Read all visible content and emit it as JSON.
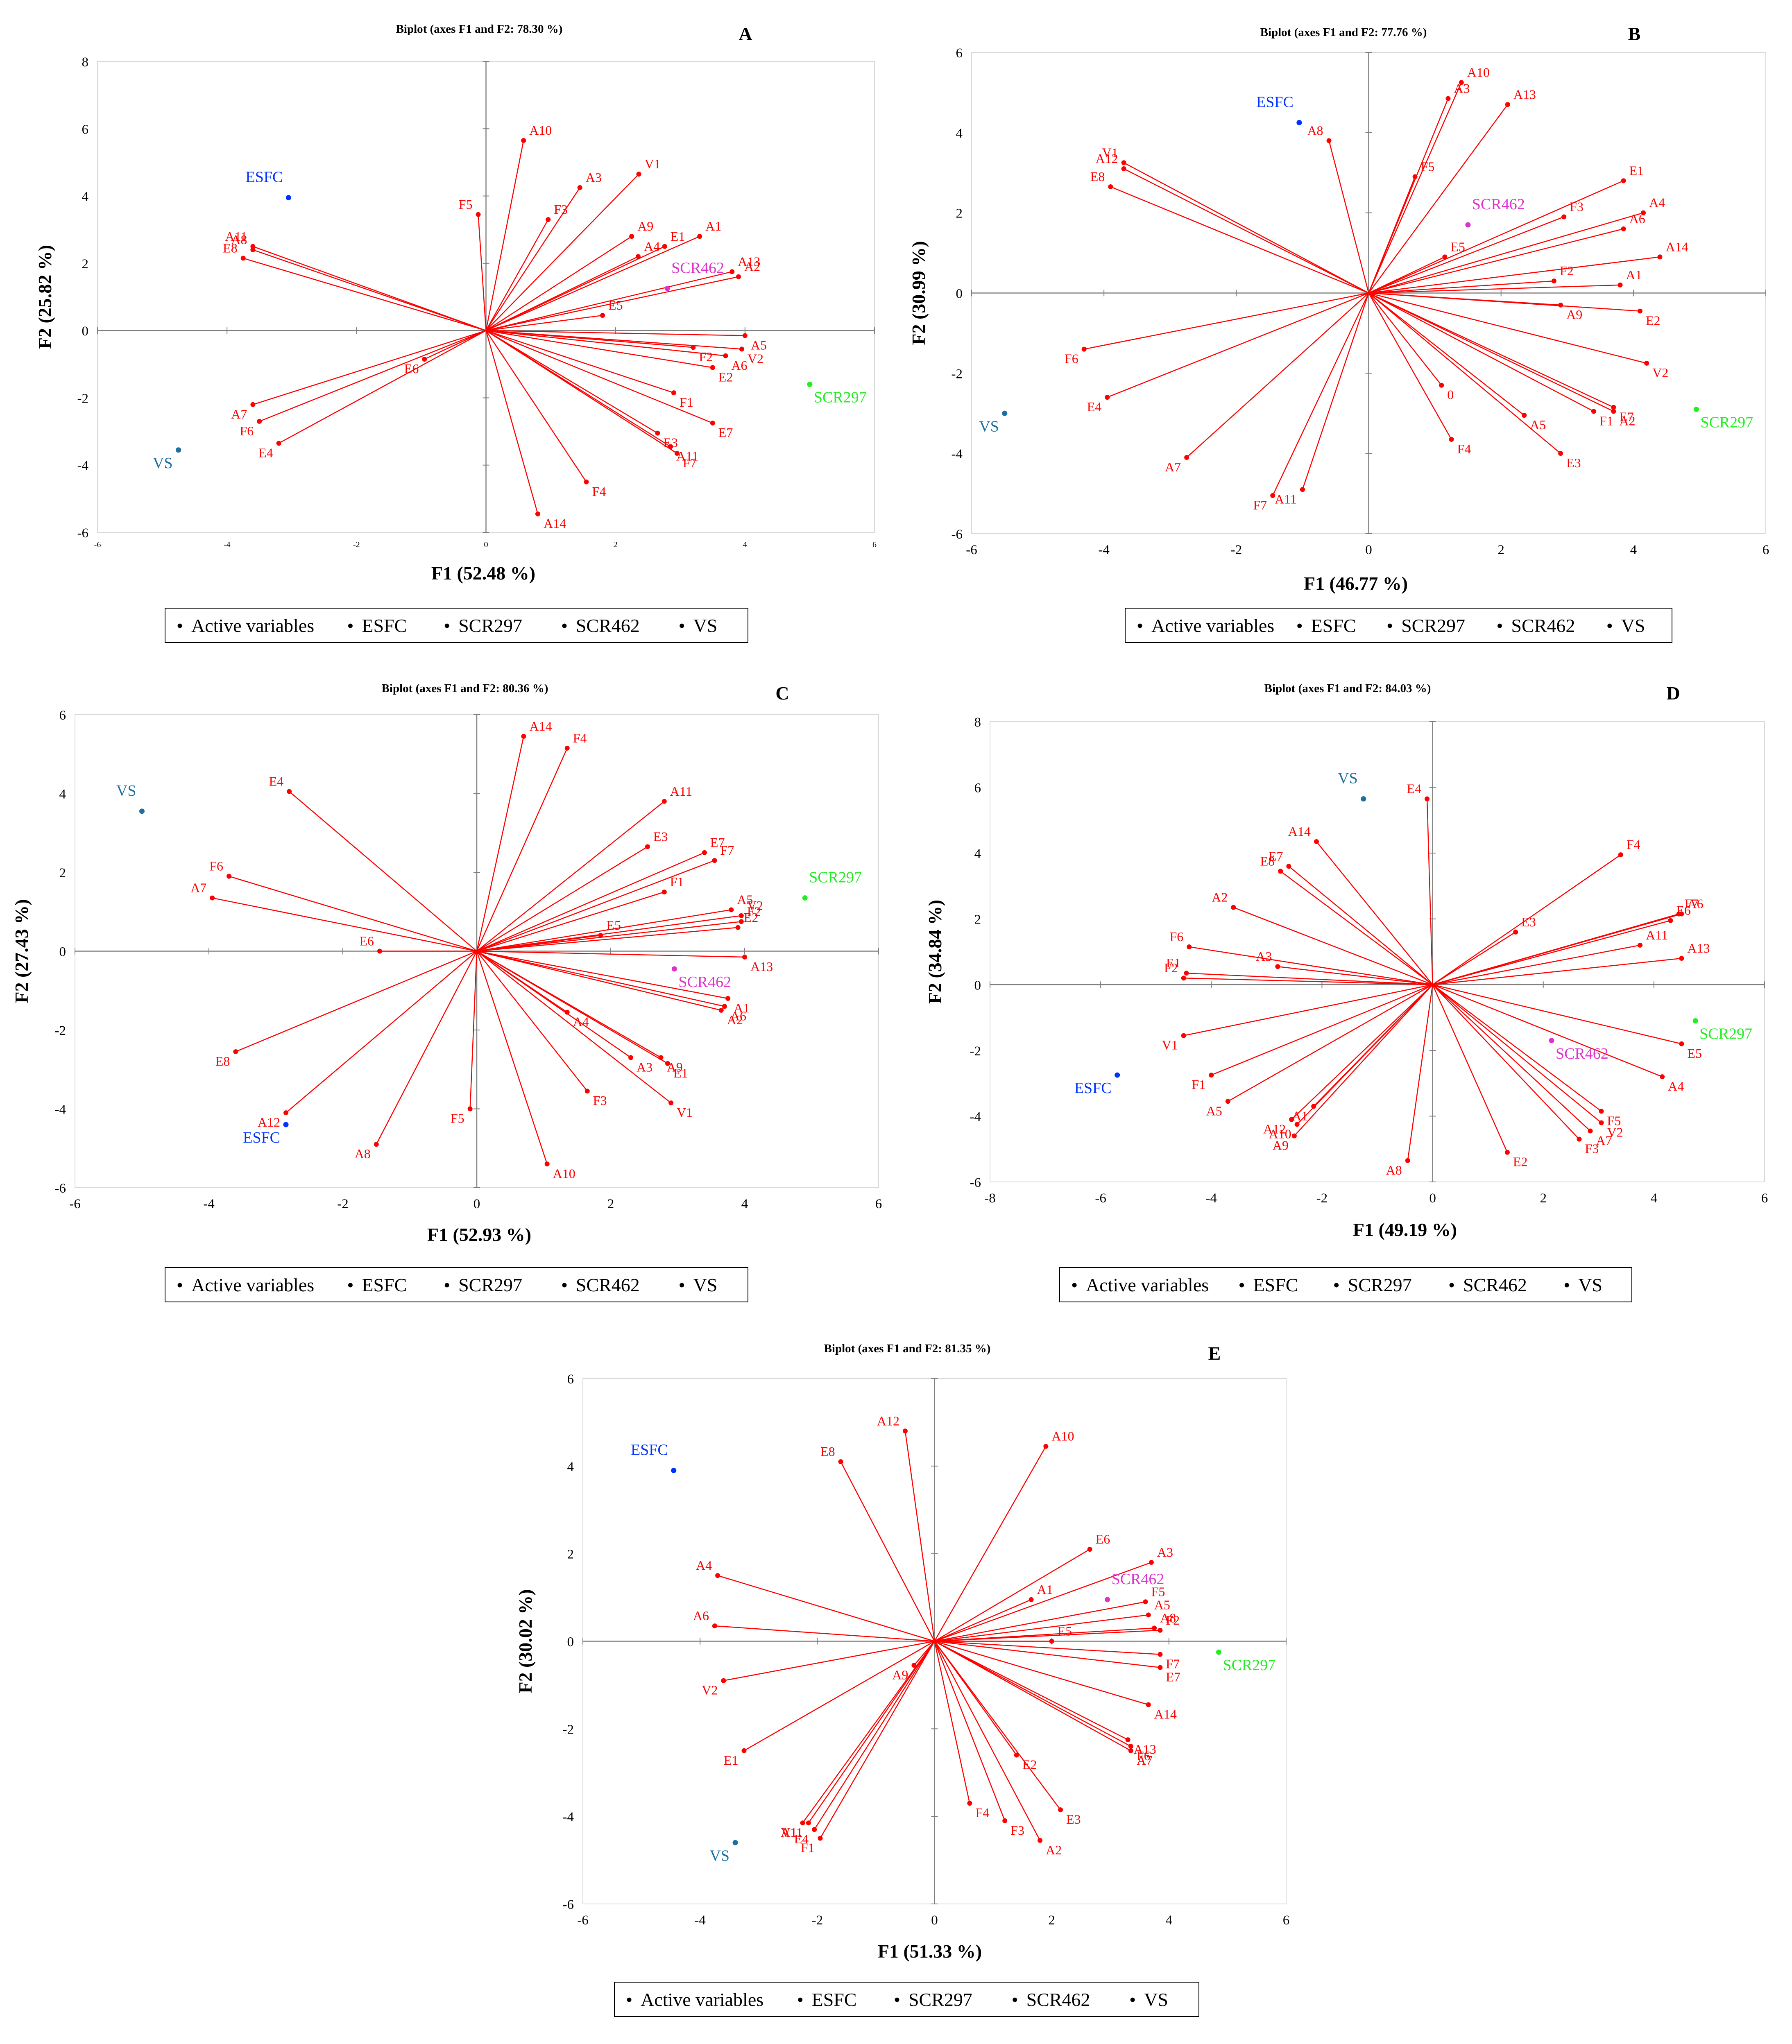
{
  "colors": {
    "active": "#FF0000",
    "ESFC": "#0033FF",
    "SCR297": "#22EE22",
    "SCR462": "#DD33CC",
    "VS": "#1C6FA0"
  },
  "legend": {
    "marker": "•",
    "items": [
      {
        "label": "Active variables",
        "key": "active"
      },
      {
        "label": "ESFC",
        "key": "ESFC"
      },
      {
        "label": "SCR297",
        "key": "SCR297"
      },
      {
        "label": "SCR462",
        "key": "SCR462"
      },
      {
        "label": "VS",
        "key": "VS"
      }
    ]
  },
  "chart_data": [
    {
      "type": "scatter",
      "panel": "A",
      "title": "Biplot (axes F1 and F2: 78.30 %)",
      "xlabel": "F1 (52.48 %)",
      "ylabel": "F2 (25.82 %)",
      "xlim": [
        -6,
        6
      ],
      "ylim": [
        -6,
        8
      ],
      "xticks": [
        -6,
        -4,
        -2,
        0,
        2,
        4,
        6
      ],
      "yticks": [
        -6,
        -4,
        -2,
        0,
        2,
        4,
        6,
        8
      ],
      "small_x_ticks": true,
      "variables": [
        {
          "label": "A10",
          "x": 0.58,
          "y": 5.65
        },
        {
          "label": "F5",
          "x": -0.12,
          "y": 3.45
        },
        {
          "label": "A3",
          "x": 1.45,
          "y": 4.25
        },
        {
          "label": "V1",
          "x": 2.36,
          "y": 4.65
        },
        {
          "label": "F3",
          "x": 0.96,
          "y": 3.3
        },
        {
          "label": "A9",
          "x": 2.25,
          "y": 2.8
        },
        {
          "label": "E1",
          "x": 2.76,
          "y": 2.5
        },
        {
          "label": "A4",
          "x": 2.35,
          "y": 2.2
        },
        {
          "label": "A1",
          "x": 3.3,
          "y": 2.8
        },
        {
          "label": "A13",
          "x": 3.8,
          "y": 1.75
        },
        {
          "label": "A2",
          "x": 3.9,
          "y": 1.6
        },
        {
          "label": "E5",
          "x": 1.8,
          "y": 0.45
        },
        {
          "label": "A5",
          "x": 4.0,
          "y": -0.15
        },
        {
          "label": "V2",
          "x": 3.95,
          "y": -0.55
        },
        {
          "label": "A6",
          "x": 3.7,
          "y": -0.75
        },
        {
          "label": "F2",
          "x": 3.2,
          "y": -0.5
        },
        {
          "label": "E2",
          "x": 3.5,
          "y": -1.1
        },
        {
          "label": "F1",
          "x": 2.9,
          "y": -1.85
        },
        {
          "label": "E7",
          "x": 3.5,
          "y": -2.75
        },
        {
          "label": "E3",
          "x": 2.65,
          "y": -3.05
        },
        {
          "label": "A11",
          "x": 2.85,
          "y": -3.45
        },
        {
          "label": "F7",
          "x": 2.95,
          "y": -3.65
        },
        {
          "label": "F4",
          "x": 1.55,
          "y": -4.5
        },
        {
          "label": "A14",
          "x": 0.8,
          "y": -5.45
        },
        {
          "label": "E6",
          "x": -0.95,
          "y": -0.85
        },
        {
          "label": "A7",
          "x": -3.6,
          "y": -2.2
        },
        {
          "label": "F6",
          "x": -3.5,
          "y": -2.7
        },
        {
          "label": "E4",
          "x": -3.2,
          "y": -3.35
        },
        {
          "label": "A11",
          "x": -3.6,
          "y": 2.5
        },
        {
          "label": "A8",
          "x": -3.6,
          "y": 2.4
        },
        {
          "label": "E8",
          "x": -3.75,
          "y": 2.15
        }
      ],
      "observations": [
        {
          "label": "ESFC",
          "key": "ESFC",
          "x": -3.05,
          "y": 3.95
        },
        {
          "label": "SCR297",
          "key": "SCR297",
          "x": 5.0,
          "y": -1.6
        },
        {
          "label": "SCR462",
          "key": "SCR462",
          "x": 2.8,
          "y": 1.25
        },
        {
          "label": "VS",
          "key": "VS",
          "x": -4.75,
          "y": -3.55
        }
      ]
    },
    {
      "type": "scatter",
      "panel": "B",
      "title": "Biplot (axes F1 and F2: 77.76 %)",
      "xlabel": "F1 (46.77 %)",
      "ylabel": "F2 (30.99 %)",
      "xlim": [
        -6,
        6
      ],
      "ylim": [
        -6,
        6
      ],
      "xticks": [
        -6,
        -4,
        -2,
        0,
        2,
        4,
        6
      ],
      "yticks": [
        -6,
        -4,
        -2,
        0,
        2,
        4,
        6
      ],
      "small_x_ticks": false,
      "variables": [
        {
          "label": "A10",
          "x": 1.4,
          "y": 5.25
        },
        {
          "label": "A3",
          "x": 1.2,
          "y": 4.85
        },
        {
          "label": "A13",
          "x": 2.1,
          "y": 4.7
        },
        {
          "label": "A8",
          "x": -0.6,
          "y": 3.8
        },
        {
          "label": "F5",
          "x": 0.7,
          "y": 2.9
        },
        {
          "label": "V1",
          "x": -3.7,
          "y": 3.25
        },
        {
          "label": "A12",
          "x": -3.7,
          "y": 3.1
        },
        {
          "label": "E8",
          "x": -3.9,
          "y": 2.65
        },
        {
          "label": "E1",
          "x": 3.85,
          "y": 2.8
        },
        {
          "label": "A4",
          "x": 4.15,
          "y": 2.0
        },
        {
          "label": "F3",
          "x": 2.95,
          "y": 1.9
        },
        {
          "label": "A6",
          "x": 3.85,
          "y": 1.6
        },
        {
          "label": "A14",
          "x": 4.4,
          "y": 0.9
        },
        {
          "label": "E5",
          "x": 1.15,
          "y": 0.9
        },
        {
          "label": "F2",
          "x": 2.8,
          "y": 0.3
        },
        {
          "label": "A1",
          "x": 3.8,
          "y": 0.2
        },
        {
          "label": "A9",
          "x": 2.9,
          "y": -0.3
        },
        {
          "label": "E2",
          "x": 4.1,
          "y": -0.45
        },
        {
          "label": "V2",
          "x": 4.2,
          "y": -1.75
        },
        {
          "label": "E7",
          "x": 3.7,
          "y": -2.85
        },
        {
          "label": "A2",
          "x": 3.7,
          "y": -2.95
        },
        {
          "label": "F1",
          "x": 3.4,
          "y": -2.95
        },
        {
          "label": "A5",
          "x": 2.35,
          "y": -3.05
        },
        {
          "label": "E3",
          "x": 2.9,
          "y": -4.0
        },
        {
          "label": "0",
          "x": 1.1,
          "y": -2.3
        },
        {
          "label": "F4",
          "x": 1.25,
          "y": -3.65
        },
        {
          "label": "A11",
          "x": -1.0,
          "y": -4.9
        },
        {
          "label": "F7",
          "x": -1.45,
          "y": -5.05
        },
        {
          "label": "A7",
          "x": -2.75,
          "y": -4.1
        },
        {
          "label": "F6",
          "x": -4.3,
          "y": -1.4
        },
        {
          "label": "E4",
          "x": -3.95,
          "y": -2.6
        }
      ],
      "observations": [
        {
          "label": "ESFC",
          "key": "ESFC",
          "x": -1.05,
          "y": 4.25
        },
        {
          "label": "SCR297",
          "key": "SCR297",
          "x": 4.95,
          "y": -2.9
        },
        {
          "label": "SCR462",
          "key": "SCR462",
          "x": 1.5,
          "y": 1.7
        },
        {
          "label": "VS",
          "key": "VS",
          "x": -5.5,
          "y": -3.0
        }
      ]
    },
    {
      "type": "scatter",
      "panel": "C",
      "title": "Biplot (axes F1 and F2: 80.36 %)",
      "xlabel": "F1 (52.93 %)",
      "ylabel": "F2 (27.43 %)",
      "xlim": [
        -6,
        6
      ],
      "ylim": [
        -6,
        6
      ],
      "xticks": [
        -6,
        -4,
        -2,
        0,
        2,
        4,
        6
      ],
      "yticks": [
        -6,
        -4,
        -2,
        0,
        2,
        4,
        6
      ],
      "small_x_ticks": false,
      "variables": [
        {
          "label": "A14",
          "x": 0.7,
          "y": 5.45
        },
        {
          "label": "F4",
          "x": 1.35,
          "y": 5.15
        },
        {
          "label": "A11",
          "x": 2.8,
          "y": 3.8
        },
        {
          "label": "E3",
          "x": 2.55,
          "y": 2.65
        },
        {
          "label": "E7",
          "x": 3.4,
          "y": 2.5
        },
        {
          "label": "F7",
          "x": 3.55,
          "y": 2.3
        },
        {
          "label": "F1",
          "x": 2.8,
          "y": 1.5
        },
        {
          "label": "A5",
          "x": 3.8,
          "y": 1.05
        },
        {
          "label": "V2",
          "x": 3.95,
          "y": 0.9
        },
        {
          "label": "F2",
          "x": 3.95,
          "y": 0.75
        },
        {
          "label": "E2",
          "x": 3.9,
          "y": 0.6
        },
        {
          "label": "E5",
          "x": 1.85,
          "y": 0.4
        },
        {
          "label": "A13",
          "x": 4.0,
          "y": -0.15
        },
        {
          "label": "A1",
          "x": 3.75,
          "y": -1.2
        },
        {
          "label": "A6",
          "x": 3.7,
          "y": -1.4
        },
        {
          "label": "A2",
          "x": 3.65,
          "y": -1.5
        },
        {
          "label": "A4",
          "x": 1.35,
          "y": -1.55
        },
        {
          "label": "A9",
          "x": 2.75,
          "y": -2.7
        },
        {
          "label": "E1",
          "x": 2.85,
          "y": -2.85
        },
        {
          "label": "A3",
          "x": 2.3,
          "y": -2.7
        },
        {
          "label": "F3",
          "x": 1.65,
          "y": -3.55
        },
        {
          "label": "V1",
          "x": 2.9,
          "y": -3.85
        },
        {
          "label": "A10",
          "x": 1.05,
          "y": -5.4
        },
        {
          "label": "F5",
          "x": -0.1,
          "y": -4.0
        },
        {
          "label": "A8",
          "x": -1.5,
          "y": -4.9
        },
        {
          "label": "A12",
          "x": -2.85,
          "y": -4.1
        },
        {
          "label": "E8",
          "x": -3.6,
          "y": -2.55
        },
        {
          "label": "E6",
          "x": -1.45,
          "y": 0.0
        },
        {
          "label": "A7",
          "x": -3.95,
          "y": 1.35
        },
        {
          "label": "F6",
          "x": -3.7,
          "y": 1.9
        },
        {
          "label": "E4",
          "x": -2.8,
          "y": 4.05
        }
      ],
      "observations": [
        {
          "label": "VS",
          "key": "VS",
          "x": -5.0,
          "y": 3.55
        },
        {
          "label": "ESFC",
          "key": "ESFC",
          "x": -2.85,
          "y": -4.4
        },
        {
          "label": "SCR297",
          "key": "SCR297",
          "x": 4.9,
          "y": 1.35
        },
        {
          "label": "SCR462",
          "key": "SCR462",
          "x": 2.95,
          "y": -0.45
        }
      ]
    },
    {
      "type": "scatter",
      "panel": "D",
      "title": "Biplot (axes F1 and F2: 84.03 %)",
      "xlabel": "F1 (49.19 %)",
      "ylabel": "F2 (34.84 %)",
      "xlim": [
        -8,
        6
      ],
      "ylim": [
        -6,
        8
      ],
      "xticks": [
        -8,
        -6,
        -4,
        -2,
        0,
        2,
        4,
        6
      ],
      "yticks": [
        -6,
        -4,
        -2,
        0,
        2,
        4,
        6,
        8
      ],
      "small_x_ticks": false,
      "variables": [
        {
          "label": "E4",
          "x": -0.1,
          "y": 5.65
        },
        {
          "label": "A14",
          "x": -2.1,
          "y": 4.35
        },
        {
          "label": "E7",
          "x": -2.6,
          "y": 3.6
        },
        {
          "label": "E8",
          "x": -2.75,
          "y": 3.45
        },
        {
          "label": "A2",
          "x": -3.6,
          "y": 2.35
        },
        {
          "label": "F6",
          "x": -4.4,
          "y": 1.15
        },
        {
          "label": "A3",
          "x": -2.8,
          "y": 0.55
        },
        {
          "label": "E1",
          "x": -4.45,
          "y": 0.35
        },
        {
          "label": "F2",
          "x": -4.5,
          "y": 0.2
        },
        {
          "label": "V1",
          "x": -4.5,
          "y": -1.55
        },
        {
          "label": "F1",
          "x": -4.0,
          "y": -2.75
        },
        {
          "label": "A5",
          "x": -3.7,
          "y": -3.55
        },
        {
          "label": "A1",
          "x": -2.15,
          "y": -3.7
        },
        {
          "label": "A12",
          "x": -2.55,
          "y": -4.1
        },
        {
          "label": "A10",
          "x": -2.45,
          "y": -4.25
        },
        {
          "label": "A9",
          "x": -2.5,
          "y": -4.6
        },
        {
          "label": "A8",
          "x": -0.45,
          "y": -5.35
        },
        {
          "label": "E2",
          "x": 1.35,
          "y": -5.1
        },
        {
          "label": "E3",
          "x": 1.5,
          "y": 1.6
        },
        {
          "label": "F4",
          "x": 3.4,
          "y": 3.95
        },
        {
          "label": "A6",
          "x": 4.5,
          "y": 2.15
        },
        {
          "label": "F7",
          "x": 4.45,
          "y": 2.15
        },
        {
          "label": "E6",
          "x": 4.3,
          "y": 1.95
        },
        {
          "label": "A11",
          "x": 3.75,
          "y": 1.2
        },
        {
          "label": "A13",
          "x": 4.5,
          "y": 0.8
        },
        {
          "label": "E5",
          "x": 4.5,
          "y": -1.8
        },
        {
          "label": "A4",
          "x": 4.15,
          "y": -2.8
        },
        {
          "label": "F5",
          "x": 3.05,
          "y": -3.85
        },
        {
          "label": "V2",
          "x": 3.05,
          "y": -4.2
        },
        {
          "label": "A7",
          "x": 2.85,
          "y": -4.45
        },
        {
          "label": "F3",
          "x": 2.65,
          "y": -4.7
        }
      ],
      "observations": [
        {
          "label": "VS",
          "key": "VS",
          "x": -1.25,
          "y": 5.65
        },
        {
          "label": "ESFC",
          "key": "ESFC",
          "x": -5.7,
          "y": -2.75
        },
        {
          "label": "SCR297",
          "key": "SCR297",
          "x": 4.75,
          "y": -1.1
        },
        {
          "label": "SCR462",
          "key": "SCR462",
          "x": 2.15,
          "y": -1.7
        }
      ]
    },
    {
      "type": "scatter",
      "panel": "E",
      "title": "Biplot (axes F1 and F2: 81.35 %)",
      "xlabel": "F1 (51.33 %)",
      "ylabel": "F2 (30.02 %)",
      "xlim": [
        -6,
        6
      ],
      "ylim": [
        -6,
        6
      ],
      "xticks": [
        -6,
        -4,
        -2,
        0,
        2,
        4,
        6
      ],
      "yticks": [
        -6,
        -4,
        -2,
        0,
        2,
        4,
        6
      ],
      "small_x_ticks": false,
      "variables": [
        {
          "label": "A12",
          "x": -0.5,
          "y": 4.8
        },
        {
          "label": "E8",
          "x": -1.6,
          "y": 4.1
        },
        {
          "label": "A10",
          "x": 1.9,
          "y": 4.45
        },
        {
          "label": "E6",
          "x": 2.65,
          "y": 2.1
        },
        {
          "label": "A3",
          "x": 3.7,
          "y": 1.8
        },
        {
          "label": "A1",
          "x": 1.65,
          "y": 0.95
        },
        {
          "label": "F5",
          "x": 3.6,
          "y": 0.9
        },
        {
          "label": "A5",
          "x": 3.65,
          "y": 0.6
        },
        {
          "label": "A8",
          "x": 3.75,
          "y": 0.3
        },
        {
          "label": "F2",
          "x": 3.85,
          "y": 0.25
        },
        {
          "label": "E5",
          "x": 2.0,
          "y": 0.0
        },
        {
          "label": "F7",
          "x": 3.85,
          "y": -0.3
        },
        {
          "label": "E7",
          "x": 3.85,
          "y": -0.6
        },
        {
          "label": "A14",
          "x": 3.65,
          "y": -1.45
        },
        {
          "label": "A13",
          "x": 3.3,
          "y": -2.25
        },
        {
          "label": "F6",
          "x": 3.35,
          "y": -2.4
        },
        {
          "label": "A7",
          "x": 3.35,
          "y": -2.5
        },
        {
          "label": "E2",
          "x": 1.4,
          "y": -2.6
        },
        {
          "label": "E3",
          "x": 2.15,
          "y": -3.85
        },
        {
          "label": "F4",
          "x": 0.6,
          "y": -3.7
        },
        {
          "label": "F3",
          "x": 1.2,
          "y": -4.1
        },
        {
          "label": "A2",
          "x": 1.8,
          "y": -4.55
        },
        {
          "label": "A9",
          "x": -0.35,
          "y": -0.55
        },
        {
          "label": "A4",
          "x": -3.7,
          "y": 1.5
        },
        {
          "label": "A6",
          "x": -3.75,
          "y": 0.35
        },
        {
          "label": "V2",
          "x": -3.6,
          "y": -0.9
        },
        {
          "label": "E1",
          "x": -3.25,
          "y": -2.5
        },
        {
          "label": "V1",
          "x": -2.25,
          "y": -4.15
        },
        {
          "label": "A11",
          "x": -2.15,
          "y": -4.15
        },
        {
          "label": "E4",
          "x": -2.05,
          "y": -4.3
        },
        {
          "label": "F1",
          "x": -1.95,
          "y": -4.5
        }
      ],
      "observations": [
        {
          "label": "ESFC",
          "key": "ESFC",
          "x": -4.45,
          "y": 3.9
        },
        {
          "label": "SCR462",
          "key": "SCR462",
          "x": 2.95,
          "y": 0.95
        },
        {
          "label": "SCR297",
          "key": "SCR297",
          "x": 4.85,
          "y": -0.25
        },
        {
          "label": "VS",
          "key": "VS",
          "x": -3.4,
          "y": -4.6
        }
      ]
    }
  ]
}
